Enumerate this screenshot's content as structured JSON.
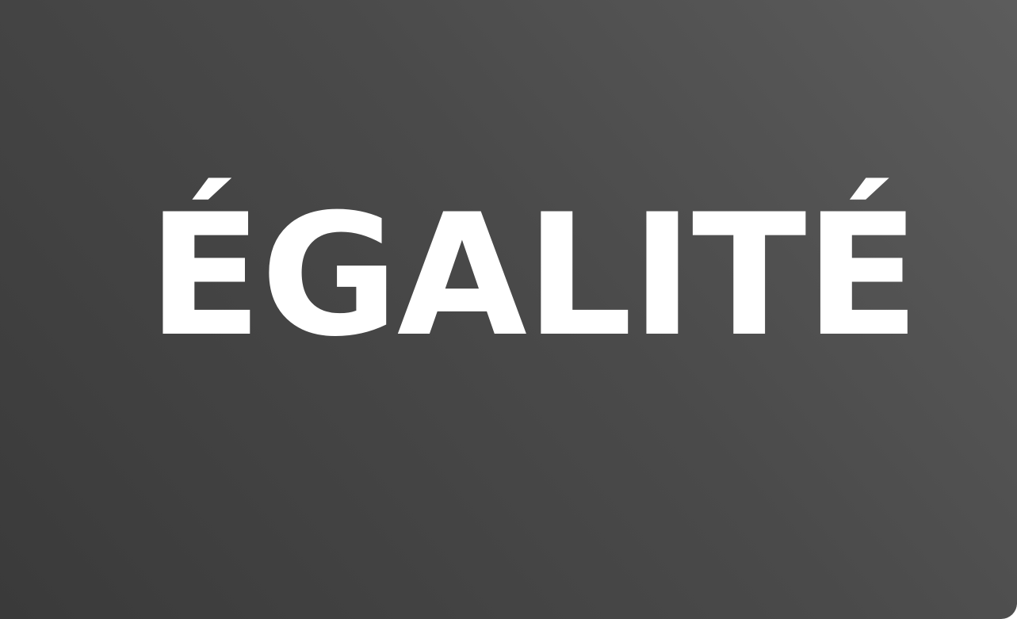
{
  "headline": {
    "text": "ÉGALITÉ"
  },
  "colors": {
    "text": "#ffffff",
    "background_light": "#5c5c5c",
    "background_dark": "#3a3a3a"
  }
}
